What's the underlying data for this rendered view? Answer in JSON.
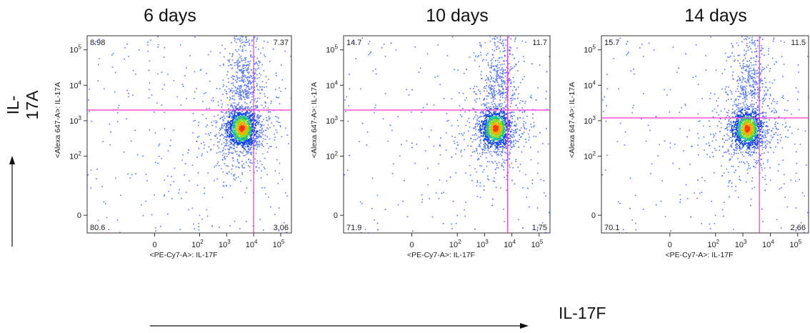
{
  "figure": {
    "y_label": "IL-17A",
    "x_label": "IL-17F"
  },
  "colors": {
    "gate_line": "#ff33cc",
    "axis": "#333333",
    "density_low": "#3355ff",
    "density_high": "#ff2200"
  },
  "chart_data": [
    {
      "type": "scatter",
      "title": "6 days",
      "xlabel": "<PE-Cy7-A>: IL-17F",
      "ylabel": "<Alexa 647-A>: IL-17A",
      "x_scale": "biexponential",
      "y_scale": "biexponential",
      "xlim": [
        -300,
        250000
      ],
      "ylim": [
        -60,
        250000
      ],
      "x_ticks": [
        "0",
        "10^2",
        "10^3",
        "10^4",
        "10^5"
      ],
      "y_ticks": [
        "0",
        "10^2",
        "10^3",
        "10^4",
        "10^5"
      ],
      "gate": {
        "x": 10000,
        "y": 2000
      },
      "quadrants": {
        "upper_left": "8.98",
        "upper_right": "7.37",
        "lower_left": "80.6",
        "lower_right": "3.06"
      }
    },
    {
      "type": "scatter",
      "title": "10 days",
      "xlabel": "<PE-Cy7-A>: IL-17F",
      "ylabel": "<Alexa 647-A>: IL-17A",
      "x_scale": "biexponential",
      "y_scale": "biexponential",
      "xlim": [
        -300,
        250000
      ],
      "ylim": [
        -60,
        250000
      ],
      "x_ticks": [
        "0",
        "10^2",
        "10^3",
        "10^4",
        "10^5"
      ],
      "y_ticks": [
        "0",
        "10^2",
        "10^3",
        "10^4",
        "10^5"
      ],
      "gate": {
        "x": 7000,
        "y": 2000
      },
      "quadrants": {
        "upper_left": "14.7",
        "upper_right": "11.7",
        "lower_left": "71.9",
        "lower_right": "1.75"
      }
    },
    {
      "type": "scatter",
      "title": "14 days",
      "xlabel": "<PE-Cy7-A>: IL-17F",
      "ylabel": "<Alexa 647-A>: IL-17A",
      "x_scale": "biexponential",
      "y_scale": "biexponential",
      "xlim": [
        -300,
        250000
      ],
      "ylim": [
        -60,
        250000
      ],
      "x_ticks": [
        "0",
        "10^2",
        "10^3",
        "10^4",
        "10^5"
      ],
      "y_ticks": [
        "0",
        "10^2",
        "10^3",
        "10^4",
        "10^5"
      ],
      "gate": {
        "x": 4000,
        "y": 1200
      },
      "quadrants": {
        "upper_left": "15.7",
        "upper_right": "11.5",
        "lower_left": "70.1",
        "lower_right": "2.66"
      }
    }
  ]
}
